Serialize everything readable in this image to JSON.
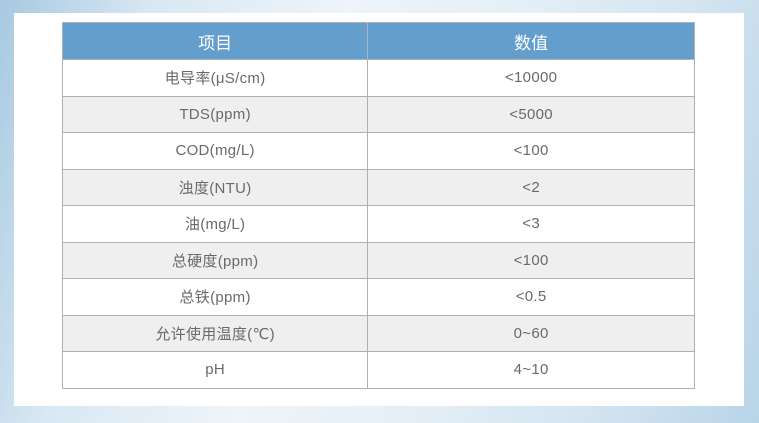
{
  "chart_data": {
    "type": "table",
    "columns": [
      "项目",
      "数值"
    ],
    "rows": [
      [
        "电导率(μS/cm)",
        "<10000"
      ],
      [
        "TDS(ppm)",
        "<5000"
      ],
      [
        "COD(mg/L)",
        "<100"
      ],
      [
        "浊度(NTU)",
        "<2"
      ],
      [
        "油(mg/L)",
        "<3"
      ],
      [
        "总硬度(ppm)",
        "<100"
      ],
      [
        "总铁(ppm)",
        "<0.5"
      ],
      [
        "允许使用温度(℃)",
        "0~60"
      ],
      [
        "pH",
        "4~10"
      ]
    ],
    "layout_hints": {
      "header_position": "top",
      "zebra_striping": "even rows gray",
      "text_align": "center"
    }
  },
  "colors": {
    "header_bg": "#649ecd",
    "header_text": "#ffffff",
    "row_bg": "#ffffff",
    "row_alt_bg": "#efefef",
    "cell_border": "#b0b0b0",
    "body_text": "#6a6a6a",
    "frame_blue": "#a7c9e1",
    "page_bg": "#ffffff"
  }
}
